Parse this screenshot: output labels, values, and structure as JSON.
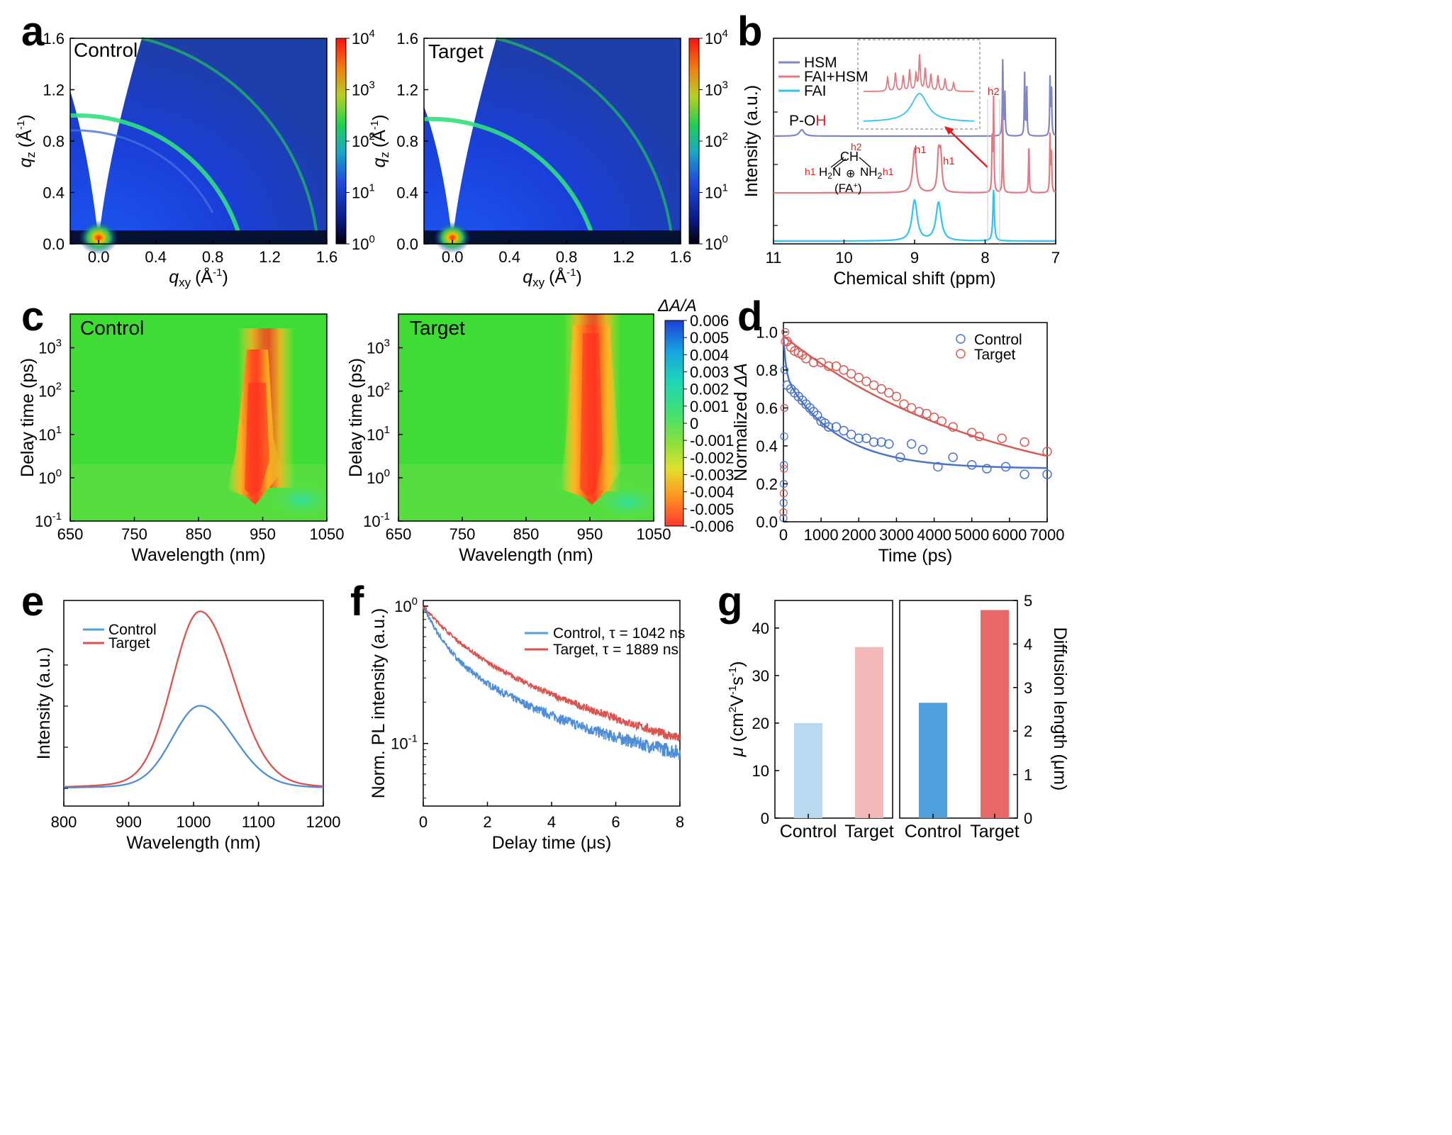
{
  "colors": {
    "control": "#4f8ed6",
    "target": "#d9534f",
    "blue_line": "#4a74c9",
    "red_line": "#d55b56",
    "hsm": "#7f86c6",
    "fai_hsm": "#e07a83",
    "fai": "#33c3ee",
    "bar_c_light": "#b9d9f1",
    "bar_t_light": "#f5b9b9",
    "bar_c_dark": "#4f9fdc",
    "bar_t_dark": "#e86767"
  },
  "panels": {
    "a": {
      "label": "a",
      "x_axis_label": "q",
      "x_sub": "xy",
      "unit": "(Å",
      "unit_exp": "-1",
      "unit_close": ")",
      "y_axis_label": "q",
      "y_sub": "z",
      "cb_base": "10",
      "cb_exps": [
        "4",
        "3",
        "2",
        "1",
        "0"
      ],
      "xticks": [
        "0.0",
        "0.4",
        "0.8",
        "1.2",
        "1.6"
      ],
      "yticks": [
        "0.0",
        "0.4",
        "0.8",
        "1.2",
        "1.6"
      ],
      "titles": [
        "Control",
        "Target"
      ]
    },
    "b": {
      "label": "b",
      "xlabel": "Chemical shift (ppm)",
      "ylabel": "Intensity (a.u.)",
      "xticks": [
        "11",
        "10",
        "9",
        "8",
        "7"
      ],
      "legend": [
        "HSM",
        "FAI+HSM",
        "FAI"
      ],
      "poh_a": "P-O",
      "poh_b": "H",
      "h1": "h1",
      "h2": "h2",
      "ch": "CH",
      "h2n": "H",
      "h2n_sub": "2",
      "h2n_n": "N",
      "nh2": "NH",
      "nh2_sub": "2",
      "fa": "(FA",
      "fa_sup": "+",
      "fa_close": ")",
      "plus": "⊕"
    },
    "c": {
      "label": "c",
      "xlabel": "Wavelength (nm)",
      "ylabel": "Delay time (ps)",
      "xticks": [
        "650",
        "750",
        "850",
        "950",
        "1050"
      ],
      "y_base": "10",
      "y_exps": [
        "-1",
        "0",
        "1",
        "2",
        "3"
      ],
      "titles": [
        "Control",
        "Target"
      ],
      "cb_title": "ΔA/A",
      "cb_ticks": [
        "0.006",
        "0.005",
        "0.004",
        "0.003",
        "0.002",
        "0.001",
        "0",
        "-0.001",
        "-0.002",
        "-0.003",
        "-0.004",
        "-0.005",
        "-0.006"
      ]
    },
    "d": {
      "label": "d",
      "xlabel": "Time (ps)",
      "ylabel_a": "Normalized ",
      "ylabel_b": "ΔA",
      "xticks": [
        "0",
        "1000",
        "2000",
        "3000",
        "4000",
        "5000",
        "6000",
        "7000"
      ],
      "yticks": [
        "0.0",
        "0.2",
        "0.4",
        "0.6",
        "0.8",
        "1.0"
      ],
      "legend": [
        "Control",
        "Target"
      ]
    },
    "e": {
      "label": "e",
      "xlabel": "Wavelength (nm)",
      "ylabel": "Intensity (a.u.)",
      "xticks": [
        "800",
        "900",
        "1000",
        "1100",
        "1200"
      ],
      "legend": [
        "Control",
        "Target"
      ]
    },
    "f": {
      "label": "f",
      "xlabel": "Delay time (μs)",
      "ylabel": "Norm. PL intensity (a.u.)",
      "xticks": [
        "0",
        "2",
        "4",
        "6",
        "8"
      ],
      "y_base": "10",
      "y_exps": [
        "0",
        "-1"
      ],
      "legend": [
        "Control, τ = 1042 ns",
        "Target, τ = 1889 ns"
      ]
    },
    "g": {
      "label": "g",
      "ylabel_left_mu": "μ",
      "ylabel_left_rest": " (cm",
      "ylabel_left_2": "2",
      "ylabel_left_v": "V",
      "ylabel_left_m1": "-1",
      "ylabel_left_s": "s",
      "ylabel_left_m1b": "-1",
      "ylabel_left_close": ")",
      "ylabel_right": "Diffusion length (μm)",
      "yticks_left": [
        "0",
        "10",
        "20",
        "30",
        "40"
      ],
      "yticks_right": [
        "0",
        "1",
        "2",
        "3",
        "4",
        "5"
      ],
      "cats": [
        "Control",
        "Target"
      ]
    }
  },
  "chart_data": [
    {
      "panel": "a",
      "type": "heatmap",
      "title": [
        "Control",
        "Target"
      ],
      "x_label": "q_xy (Å^-1)",
      "y_label": "q_z (Å^-1)",
      "xlim": [
        -0.2,
        1.6
      ],
      "ylim": [
        0,
        1.6
      ],
      "colorbar_range": [
        1,
        10000
      ],
      "colorbar_scale": "log",
      "ring_q": [
        0.98,
        1.4,
        1.6
      ]
    },
    {
      "panel": "b",
      "type": "line",
      "xlabel": "Chemical shift (ppm)",
      "ylabel": "Intensity (a.u.)",
      "xlim": [
        11,
        7
      ],
      "x_reversed": true,
      "series": [
        {
          "name": "HSM",
          "peaks_ppm": [
            10.6,
            7.75,
            7.45,
            7.42,
            7.09,
            7.07
          ]
        },
        {
          "name": "FAI+HSM",
          "peaks_ppm": [
            9.0,
            8.65,
            8.62,
            7.89,
            7.87,
            7.75,
            7.38,
            7.08
          ]
        },
        {
          "name": "FAI",
          "peaks_ppm": [
            9.0,
            8.65,
            7.88
          ]
        }
      ]
    },
    {
      "panel": "c",
      "type": "heatmap",
      "titles": [
        "Control",
        "Target"
      ],
      "xlabel": "Wavelength (nm)",
      "ylabel": "Delay time (ps)",
      "xlim": [
        650,
        1050
      ],
      "ylim": [
        0.1,
        6000
      ],
      "y_scale": "log",
      "colorbar_title": "ΔA/A",
      "colorbar_range": [
        -0.006,
        0.006
      ],
      "bleach_center_nm": [
        935,
        935
      ],
      "bleach_end_ps": [
        1000,
        4000
      ]
    },
    {
      "panel": "d",
      "type": "scatter",
      "xlabel": "Time (ps)",
      "ylabel": "Normalized ΔA",
      "xlim": [
        0,
        7000
      ],
      "ylim": [
        0,
        1.05
      ],
      "series": [
        {
          "name": "Control",
          "x": [
            100,
            200,
            300,
            400,
            500,
            600,
            700,
            800,
            900,
            1000,
            1100,
            1200,
            1400,
            1600,
            1800,
            2000,
            2200,
            2400,
            2600,
            2800,
            3100,
            3400,
            3700,
            4100,
            4500,
            5000,
            5400,
            5900,
            6400,
            7000
          ],
          "y": [
            0.72,
            0.7,
            0.68,
            0.66,
            0.64,
            0.62,
            0.6,
            0.58,
            0.56,
            0.53,
            0.52,
            0.5,
            0.5,
            0.48,
            0.46,
            0.44,
            0.44,
            0.42,
            0.42,
            0.41,
            0.34,
            0.41,
            0.38,
            0.29,
            0.34,
            0.3,
            0.28,
            0.29,
            0.25,
            0.25
          ]
        },
        {
          "name": "Target",
          "x": [
            100,
            200,
            300,
            400,
            500,
            600,
            800,
            1000,
            1200,
            1400,
            1600,
            1800,
            2000,
            2200,
            2400,
            2600,
            2800,
            3000,
            3200,
            3400,
            3600,
            3800,
            4000,
            4200,
            4500,
            5000,
            5200,
            5800,
            6400,
            7000
          ],
          "y": [
            0.95,
            0.92,
            0.9,
            0.89,
            0.88,
            0.86,
            0.84,
            0.84,
            0.82,
            0.82,
            0.8,
            0.78,
            0.76,
            0.74,
            0.72,
            0.7,
            0.68,
            0.66,
            0.62,
            0.6,
            0.58,
            0.57,
            0.55,
            0.53,
            0.5,
            0.47,
            0.45,
            0.44,
            0.42,
            0.37
          ]
        }
      ]
    },
    {
      "panel": "e",
      "type": "line",
      "xlabel": "Wavelength (nm)",
      "ylabel": "Intensity (a.u.)",
      "xlim": [
        800,
        1200
      ],
      "series": [
        {
          "name": "Control",
          "peak_nm": 1010,
          "peak_rel": 0.5
        },
        {
          "name": "Target",
          "peak_nm": 1010,
          "peak_rel": 1.0
        }
      ]
    },
    {
      "panel": "f",
      "type": "line",
      "xlabel": "Delay time (μs)",
      "ylabel": "Norm. PL intensity (a.u.)",
      "y_scale": "log",
      "xlim": [
        0,
        8
      ],
      "ylim": [
        0.035,
        1.1
      ],
      "series": [
        {
          "name": "Control, τ = 1042 ns",
          "tau_ns": 1042,
          "y_at_8us": 0.055
        },
        {
          "name": "Target, τ = 1889 ns",
          "tau_ns": 1889,
          "y_at_8us": 0.075
        }
      ]
    },
    {
      "panel": "g",
      "type": "bar",
      "categories": [
        "Control",
        "Target"
      ],
      "series": [
        {
          "name": "μ (cm2V-1s-1)",
          "values": [
            20,
            36
          ],
          "ylim": [
            0,
            45
          ]
        },
        {
          "name": "Diffusion length (μm)",
          "values": [
            2.65,
            4.78
          ],
          "ylim": [
            0,
            5
          ]
        }
      ]
    }
  ]
}
